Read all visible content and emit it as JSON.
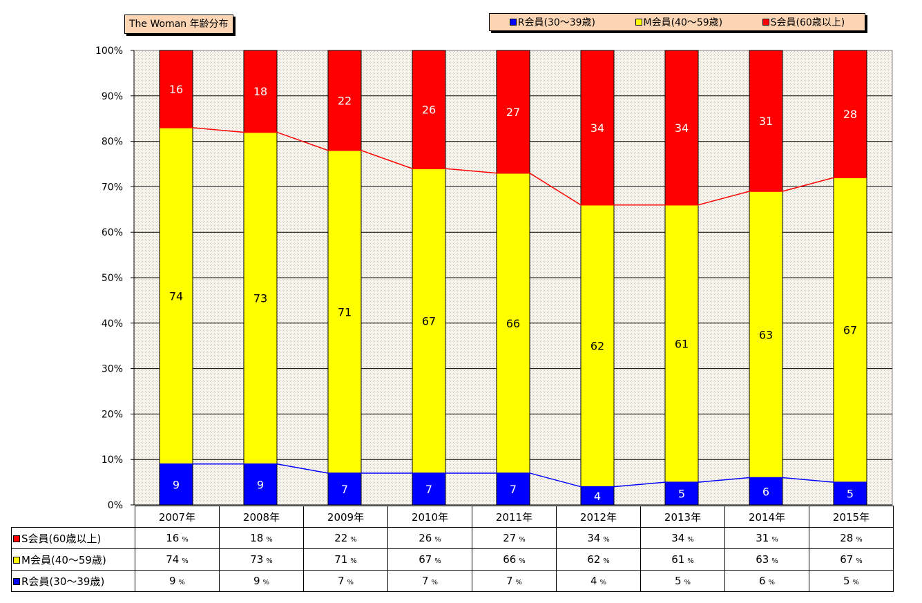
{
  "chart_data": {
    "type": "bar",
    "stacked": true,
    "normalized": true,
    "title": "The Woman  年齢分布",
    "categories": [
      "2007年",
      "2008年",
      "2009年",
      "2010年",
      "2011年",
      "2012年",
      "2013年",
      "2014年",
      "2015年"
    ],
    "series": [
      {
        "name": "R会員(30〜39歳)",
        "color": "#0000ff",
        "values": [
          9,
          9,
          7,
          7,
          7,
          4,
          5,
          6,
          5
        ]
      },
      {
        "name": "M会員(40〜59歳)",
        "color": "#ffff00",
        "values": [
          74,
          73,
          71,
          67,
          66,
          62,
          61,
          63,
          67
        ]
      },
      {
        "name": "S会員(60歳以上)",
        "color": "#ff0000",
        "values": [
          16,
          18,
          22,
          26,
          27,
          34,
          34,
          31,
          28
        ]
      }
    ],
    "y_ticks": [
      "0%",
      "10%",
      "20%",
      "30%",
      "40%",
      "50%",
      "60%",
      "70%",
      "80%",
      "90%",
      "100%"
    ],
    "ylim": [
      0,
      100
    ],
    "grid": true,
    "legend_position": "top-right",
    "data_table": true,
    "percent_unit": "%"
  }
}
